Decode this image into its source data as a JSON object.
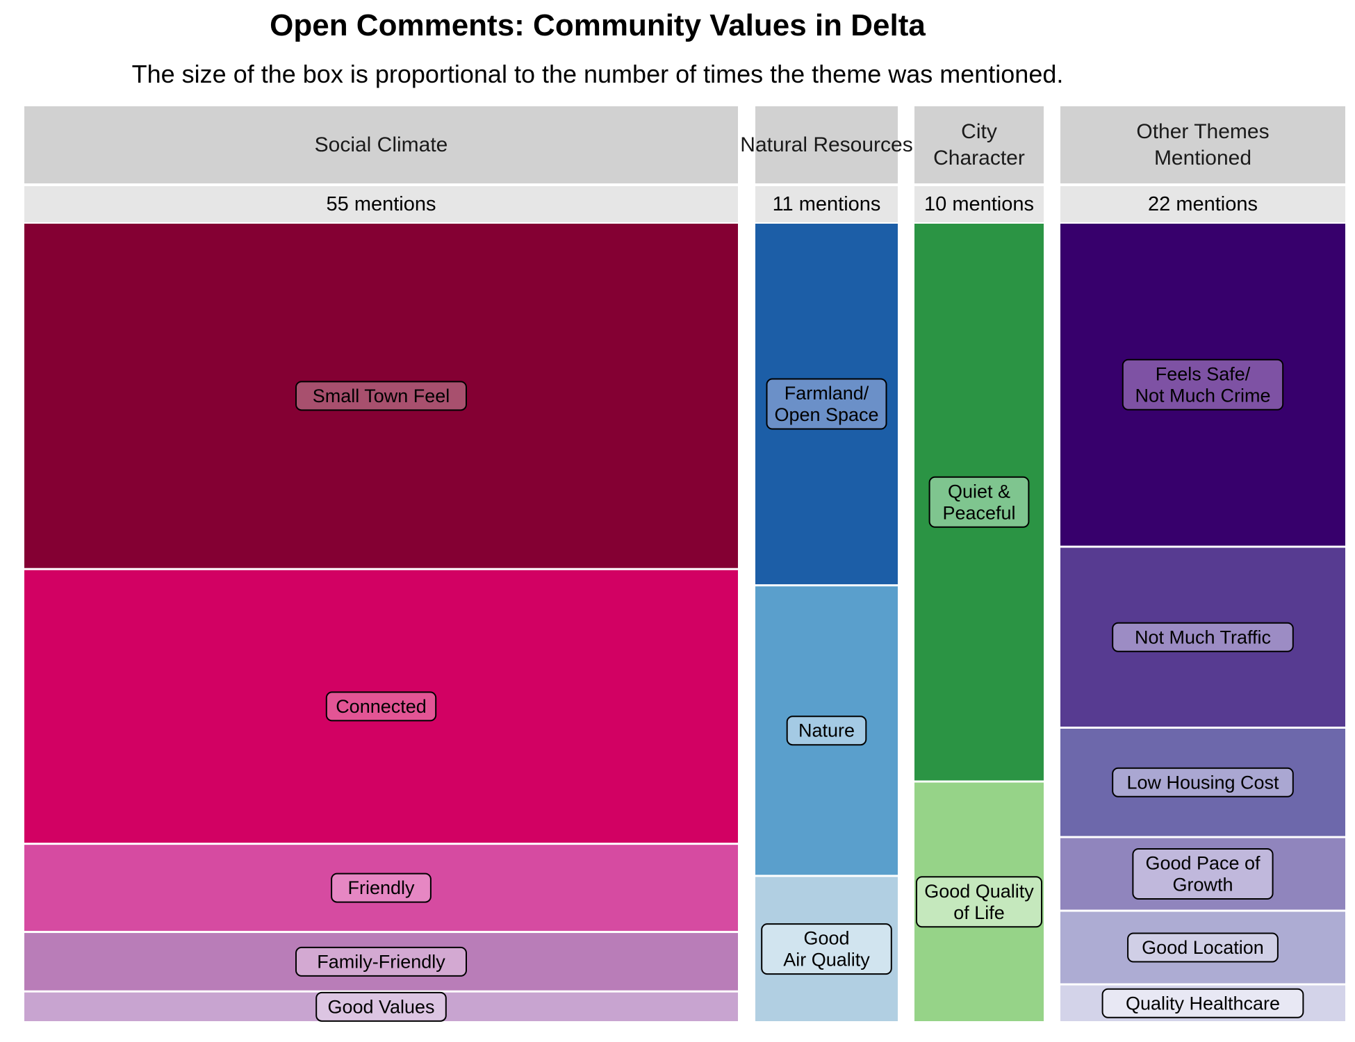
{
  "chart_data": {
    "type": "treemap",
    "title": "Open Comments: Community Values in Delta",
    "subtitle": "The size of the box is proportional to the number of times the theme was mentioned.",
    "categories": [
      {
        "name": "Social Climate",
        "count_label": "55 mentions",
        "mentions": 55,
        "items": [
          {
            "label": "Small Town Feel",
            "value": 24,
            "color": "#840033",
            "label_bg": "#a8506e"
          },
          {
            "label": "Connected",
            "value": 19,
            "color": "#d20163",
            "label_bg": "#e35595"
          },
          {
            "label": "Friendly",
            "value": 6,
            "color": "#d64ba1",
            "label_bg": "#e687c3"
          },
          {
            "label": "Family-Friendly",
            "value": 4,
            "color": "#b97db8",
            "label_bg": "#d3a9d2"
          },
          {
            "label": "Good Values",
            "value": 2,
            "color": "#c8a4d0",
            "label_bg": "#dcc5e2"
          }
        ]
      },
      {
        "name": "Natural Resources",
        "count_label": "11 mentions",
        "mentions": 11,
        "items": [
          {
            "label": "Farmland/\nOpen Space",
            "value": 5,
            "color": "#1c5ea7",
            "label_bg": "#6b90c8"
          },
          {
            "label": "Nature",
            "value": 4,
            "color": "#5a9fcc",
            "label_bg": "#a4cae4"
          },
          {
            "label": "Good\nAir Quality",
            "value": 2,
            "color": "#b1cfe2",
            "label_bg": "#d1e4ef"
          }
        ]
      },
      {
        "name": "City\nCharacter",
        "count_label": "10 mentions",
        "mentions": 10,
        "items": [
          {
            "label": "Quiet &\nPeaceful",
            "value": 7,
            "color": "#2b9444",
            "label_bg": "#7fc58f"
          },
          {
            "label": "Good Quality\nof Life",
            "value": 3,
            "color": "#96d388",
            "label_bg": "#c5e8bd"
          }
        ]
      },
      {
        "name": "Other Themes\nMentioned",
        "count_label": "22 mentions",
        "mentions": 22,
        "items": [
          {
            "label": "Feels Safe/\nNot Much Crime",
            "value": 9,
            "color": "#37006c",
            "label_bg": "#7e52a4"
          },
          {
            "label": "Not Much Traffic",
            "value": 5,
            "color": "#573b91",
            "label_bg": "#9c8cc4"
          },
          {
            "label": "Low Housing Cost",
            "value": 3,
            "color": "#6d68ab",
            "label_bg": "#aaa7d2"
          },
          {
            "label": "Good Pace of\nGrowth",
            "value": 2,
            "color": "#9085bd",
            "label_bg": "#c0b8dc"
          },
          {
            "label": "Good Location",
            "value": 2,
            "color": "#adacd3",
            "label_bg": "#d0cfe6"
          },
          {
            "label": "Quality Healthcare",
            "value": 1,
            "color": "#d3d3e9",
            "label_bg": "#e8e8f4"
          }
        ]
      }
    ]
  }
}
